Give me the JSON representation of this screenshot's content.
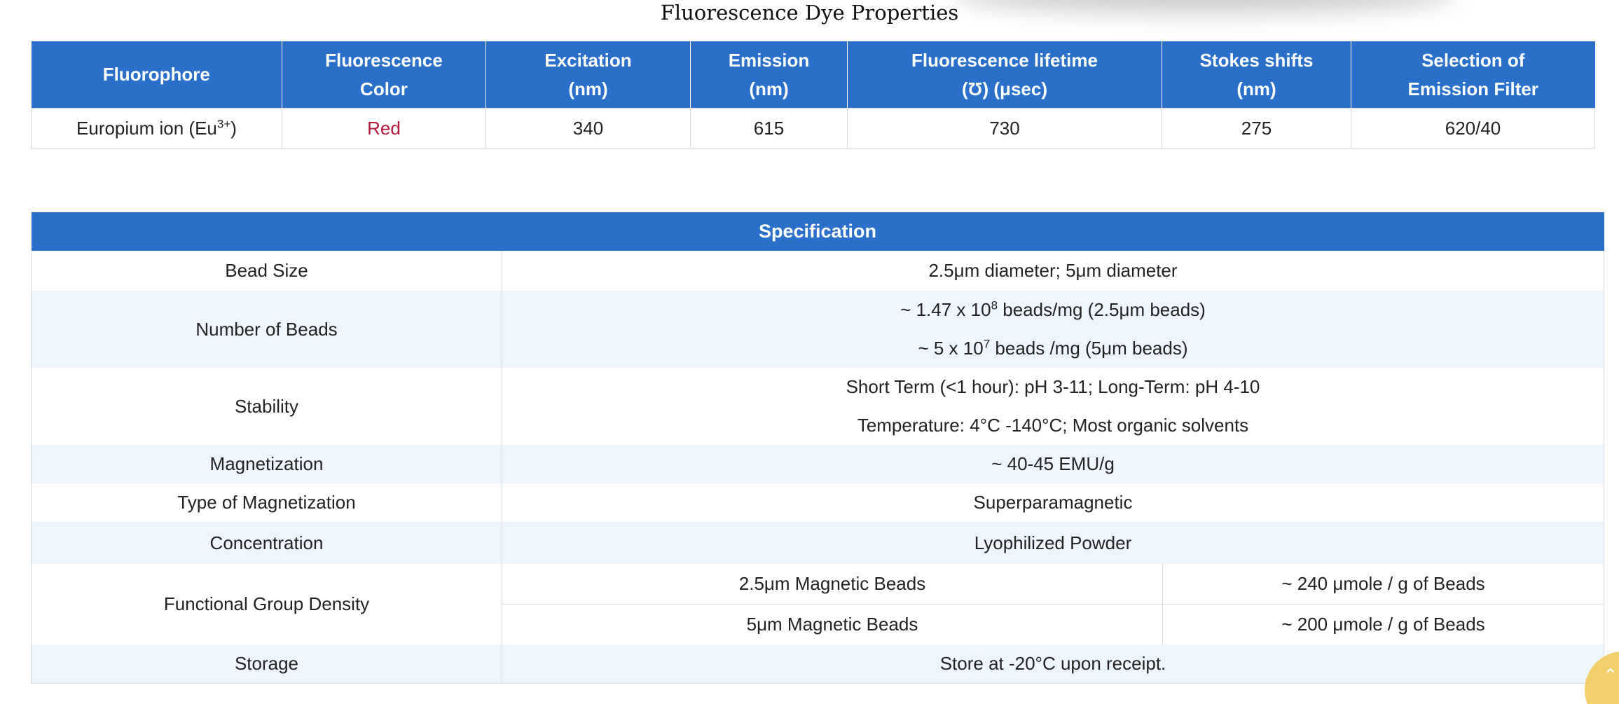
{
  "dye": {
    "title": "Fluorescence Dye Properties",
    "headers": [
      [
        "Fluorophore"
      ],
      [
        "Fluorescence",
        "Color"
      ],
      [
        "Excitation",
        "(nm)"
      ],
      [
        "Emission",
        "(nm)"
      ],
      [
        "Fluorescence lifetime",
        "(Ʊ) (μsec)"
      ],
      [
        "Stokes shifts",
        "(nm)"
      ],
      [
        "Selection of",
        "Emission Filter"
      ]
    ],
    "row": {
      "fluorophore_base": "Europium ion (Eu",
      "fluorophore_sup": "3+",
      "fluorophore_tail": ")",
      "color": "Red",
      "excitation": "340",
      "emission": "615",
      "lifetime": "730",
      "stokes": "275",
      "filter": "620/40"
    },
    "color_text_hex": "#b5173b",
    "header_bg": "#2a6fca"
  },
  "spec": {
    "title": "Specification",
    "bead_size": {
      "label": "Bead Size",
      "value": "2.5μm diameter; 5μm diameter"
    },
    "number_of_beads": {
      "label": "Number of Beads",
      "line1_pre": "~ 1.47 x 10",
      "line1_sup": "8",
      "line1_post": " beads/mg (2.5μm beads)",
      "line2_pre": "~ 5 x 10",
      "line2_sup": "7",
      "line2_post": " beads /mg (5μm beads)"
    },
    "stability": {
      "label": "Stability",
      "line1": "Short Term (<1 hour): pH 3-11; Long-Term: pH 4-10",
      "line2": "Temperature: 4°C -140°C; Most organic solvents"
    },
    "magnetization": {
      "label": "Magnetization",
      "value": "~ 40-45 EMU/g"
    },
    "type_of_magnetization": {
      "label": "Type of Magnetization",
      "value": "Superparamagnetic"
    },
    "concentration": {
      "label": "Concentration",
      "value": "Lyophilized Powder"
    },
    "functional_group_density": {
      "label": "Functional Group Density",
      "rows": [
        {
          "bead": "2.5μm Magnetic Beads",
          "value": "~ 240 μmole / g of Beads"
        },
        {
          "bead": "5μm Magnetic Beads",
          "value": "~ 200 μmole / g of Beads"
        }
      ]
    },
    "storage": {
      "label": "Storage",
      "value": "Store at -20°C upon receipt."
    },
    "band_bg": "#eef5fd"
  },
  "scroll_button": {
    "icon": "chevron-up-icon",
    "color": "#f2d06b"
  }
}
